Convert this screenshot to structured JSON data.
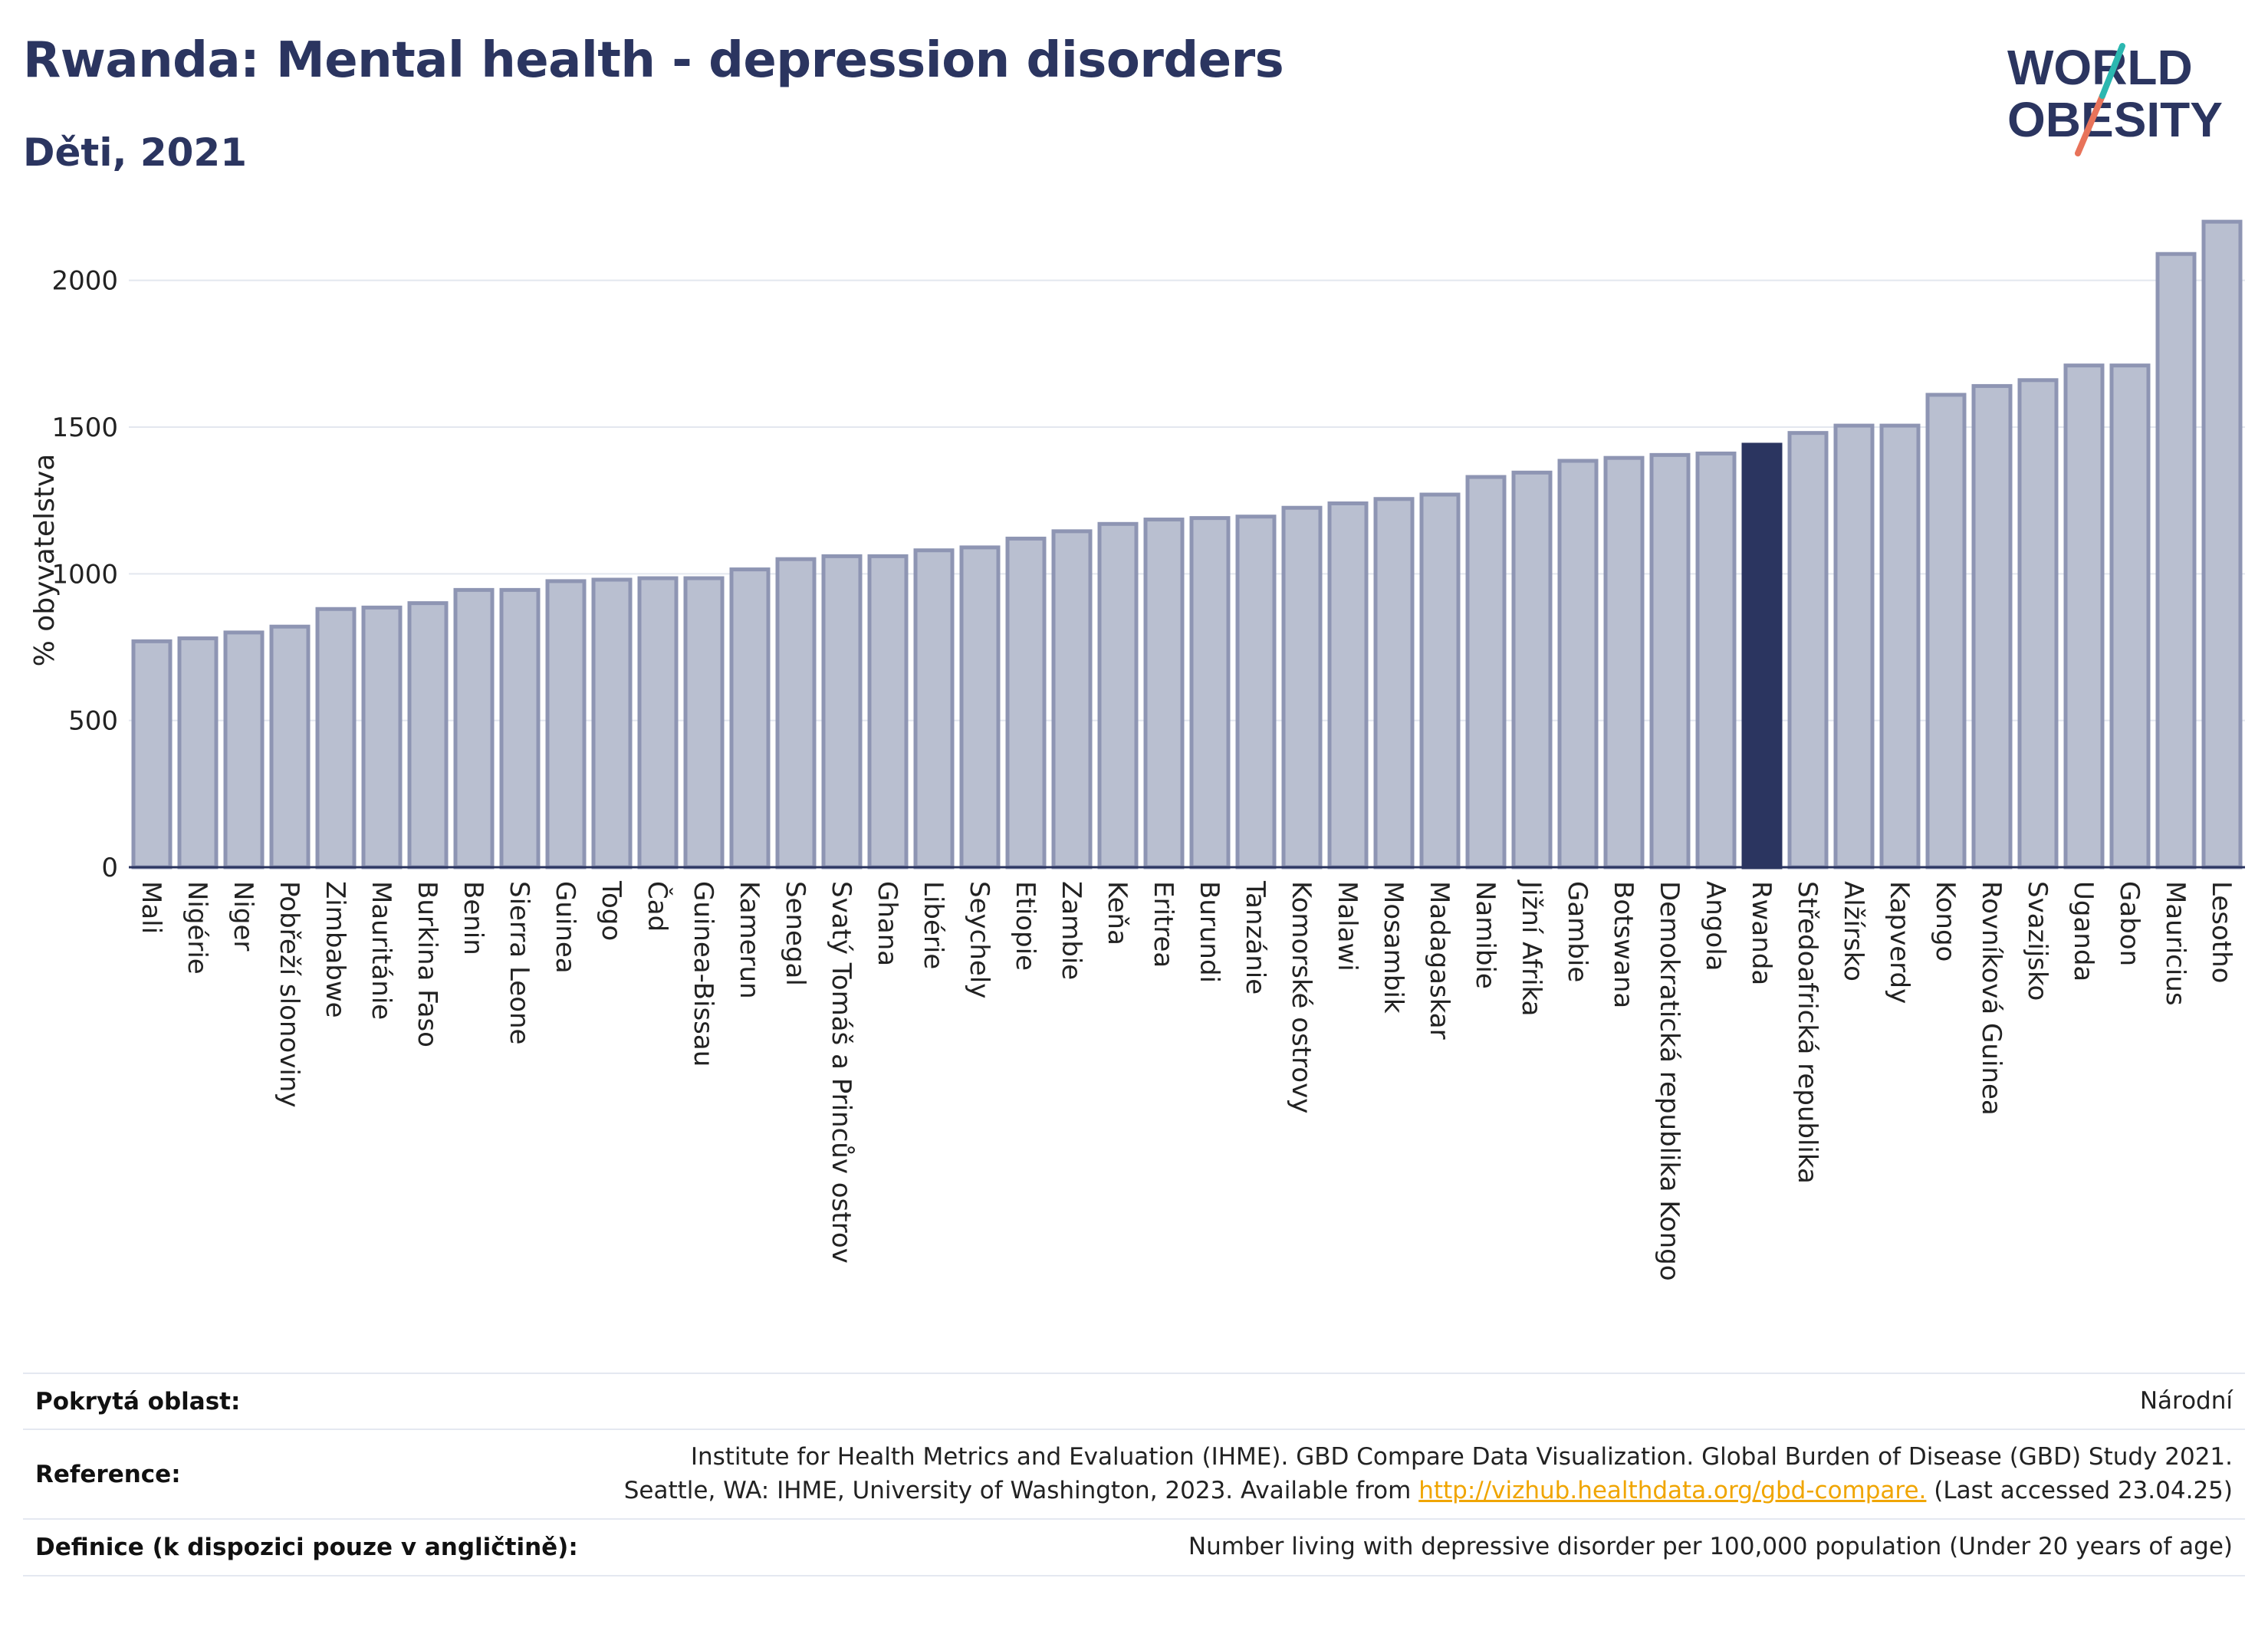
{
  "title": "Rwanda: Mental health - depression disorders",
  "subtitle": "Děti, 2021",
  "logo": {
    "line1": "WORLD",
    "line2": "OBESITY"
  },
  "colors": {
    "title": "#2b3560",
    "bar": "#b9bfd0",
    "bar_stroke": "#8e95b3",
    "highlight": "#2b3560",
    "grid": "#e3e7ef",
    "link": "#f0a500"
  },
  "chart_data": {
    "type": "bar",
    "ylabel": "% obyvatelstva",
    "xlabel": "",
    "ylim": [
      0,
      2250
    ],
    "yticks": [
      0,
      500,
      1000,
      1500,
      2000
    ],
    "grid": true,
    "highlight": "Rwanda",
    "categories": [
      "Mali",
      "Nigérie",
      "Niger",
      "Pobřeží slonoviny",
      "Zimbabwe",
      "Mauritánie",
      "Burkina Faso",
      "Benin",
      "Sierra Leone",
      "Guinea",
      "Togo",
      "Čad",
      "Guinea-Bissau",
      "Kamerun",
      "Senegal",
      "Svatý Tomáš a Princův ostrov",
      "Ghana",
      "Libérie",
      "Seychely",
      "Etiopie",
      "Zambie",
      "Keňa",
      "Eritrea",
      "Burundi",
      "Tanzánie",
      "Komorské ostrovy",
      "Malawi",
      "Mosambik",
      "Madagaskar",
      "Namibie",
      "Jižní Afrika",
      "Gambie",
      "Botswana",
      "Demokratická republika Kongo",
      "Angola",
      "Rwanda",
      "Středoafrická republika",
      "Alžírsko",
      "Kapverdy",
      "Kongo",
      "Rovníková Guinea",
      "Svazijsko",
      "Uganda",
      "Gabon",
      "Mauricius",
      "Lesotho"
    ],
    "values": [
      770,
      780,
      800,
      820,
      880,
      885,
      900,
      945,
      945,
      975,
      980,
      985,
      985,
      1015,
      1050,
      1060,
      1060,
      1080,
      1090,
      1120,
      1145,
      1170,
      1185,
      1190,
      1195,
      1225,
      1240,
      1255,
      1270,
      1330,
      1345,
      1385,
      1395,
      1405,
      1410,
      1440,
      1480,
      1505,
      1505,
      1610,
      1640,
      1660,
      1710,
      1710,
      2090,
      2200
    ]
  },
  "info": [
    {
      "label": "Pokrytá oblast:",
      "value_lines": [
        "Národní"
      ]
    },
    {
      "label": "Reference:",
      "value_lines": [
        "Institute for Health Metrics and Evaluation (IHME). GBD Compare Data Visualization. Global Burden of Disease (GBD) Study 2021.",
        "Seattle, WA: IHME, University of Washington, 2023. Available from"
      ],
      "link": "http://vizhub.healthdata.org/gbd-compare.",
      "after_link": " (Last accessed 23.04.25)"
    },
    {
      "label": "Definice (k dispozici pouze v angličtině):",
      "value_lines": [
        "Number living with depressive disorder per 100,000 population (Under 20 years of age)"
      ]
    }
  ]
}
